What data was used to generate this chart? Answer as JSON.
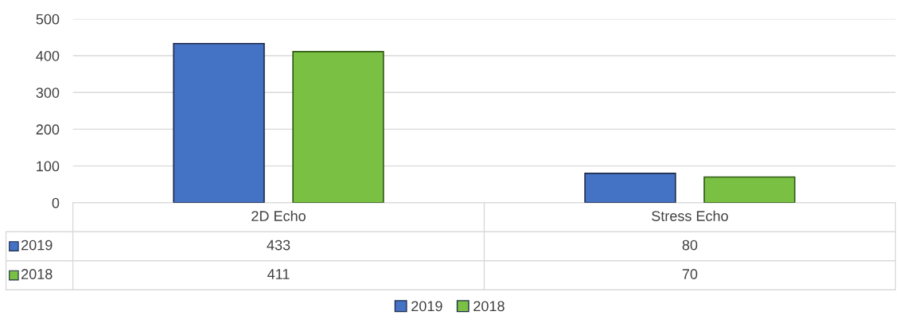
{
  "chart_data": {
    "type": "bar",
    "categories": [
      "2D Echo",
      "Stress Echo"
    ],
    "series": [
      {
        "name": "2019",
        "color": "#4472c4",
        "values": [
          433,
          80
        ]
      },
      {
        "name": "2018",
        "color": "#7ac143",
        "values": [
          411,
          70
        ]
      }
    ],
    "ylim": [
      0,
      500
    ],
    "yticks": [
      0,
      100,
      200,
      300,
      400,
      500
    ],
    "grid": "y",
    "legend": "bottom",
    "data_labels": true
  }
}
